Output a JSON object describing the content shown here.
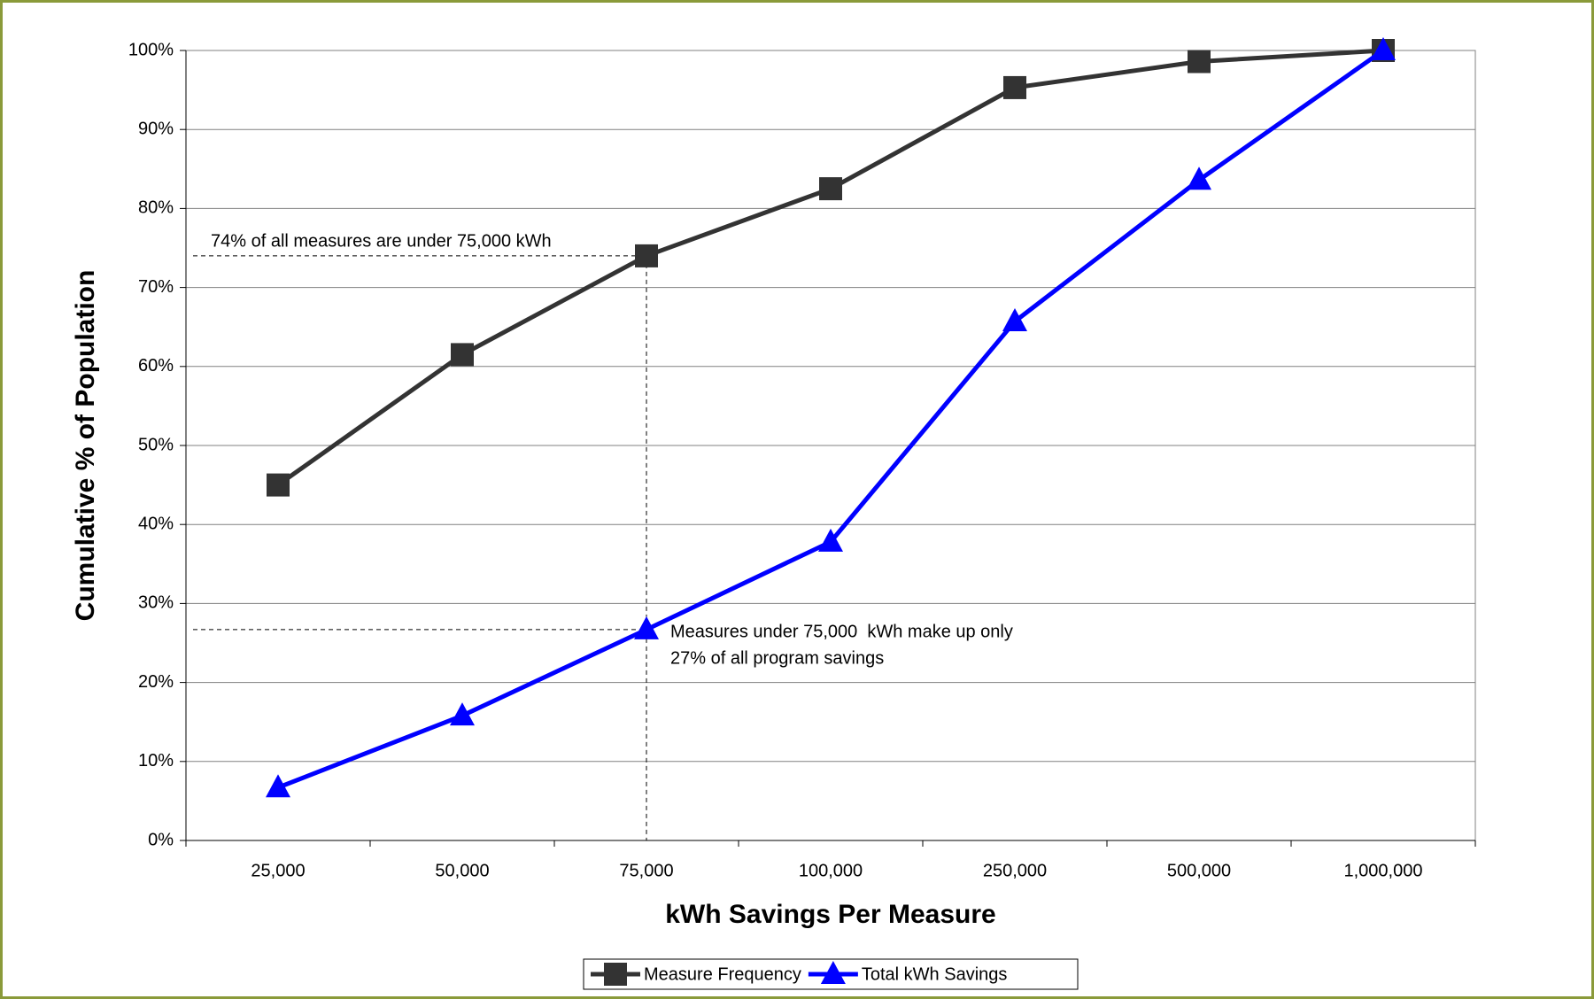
{
  "chart_data": {
    "type": "line",
    "categories": [
      "25,000",
      "50,000",
      "75,000",
      "100,000",
      "250,000",
      "500,000",
      "1,000,000"
    ],
    "x_label": "kWh Savings Per Measure",
    "y_label": "Cumulative % of Population",
    "series": [
      {
        "name": "Measure Frequency",
        "color": "#333333",
        "marker": "square",
        "values": [
          45,
          61.5,
          74,
          82.5,
          95.3,
          98.6,
          100
        ]
      },
      {
        "name": "Total kWh Savings",
        "color": "#0000ff",
        "marker": "triangle",
        "values": [
          6.7,
          15.8,
          26.7,
          37.8,
          65.7,
          83.6,
          100
        ]
      }
    ],
    "ylim": [
      0,
      100
    ],
    "yticks": [
      {
        "value": 0,
        "label": "0%"
      },
      {
        "value": 10,
        "label": "10%"
      },
      {
        "value": 20,
        "label": "20%"
      },
      {
        "value": 30,
        "label": "30%"
      },
      {
        "value": 40,
        "label": "40%"
      },
      {
        "value": 50,
        "label": "50%"
      },
      {
        "value": 60,
        "label": "60%"
      },
      {
        "value": 70,
        "label": "70%"
      },
      {
        "value": 80,
        "label": "80%"
      },
      {
        "value": 90,
        "label": "90%"
      },
      {
        "value": 100,
        "label": "100%"
      }
    ],
    "grid": true,
    "legend": "bottom",
    "annotations": [
      "74% of all measures are under 75,000 kWh",
      "Measures under 75,000  kWh make up only",
      "27% of all program savings"
    ]
  }
}
